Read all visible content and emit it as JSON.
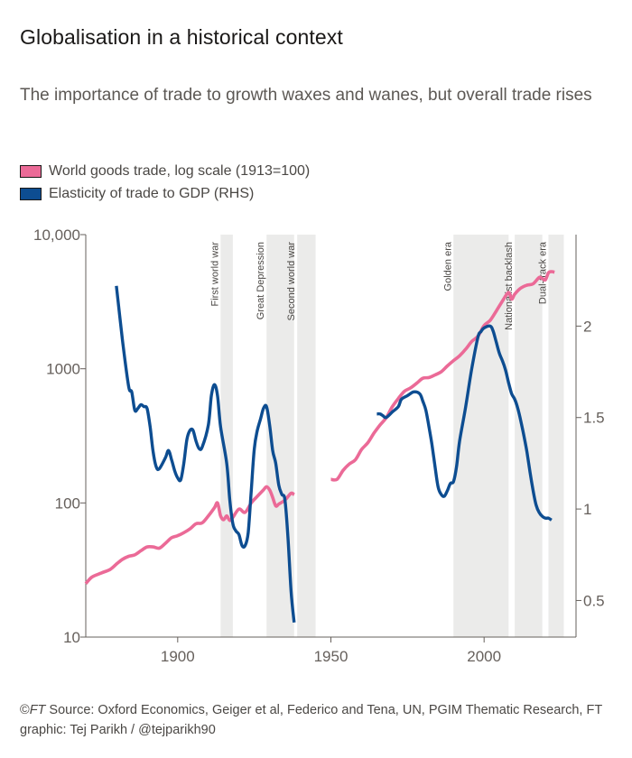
{
  "title": "Globalisation in a historical context",
  "subtitle": "The importance of trade to growth waxes and wanes, but overall trade rises",
  "footer": {
    "copyright": "©",
    "ft": "FT",
    "source": " Source: Oxford Economics, Geiger et al, Federico and Tena, UN, PGIM Thematic Research, FT graphic: Tej Parikh / @tejparikh90"
  },
  "colors": {
    "trade": "#eb6a97",
    "elasticity": "#0d4d91",
    "shade": "#ebebea",
    "axis": "#66605c"
  },
  "chart_data": {
    "type": "line",
    "xlim": [
      1870,
      2030
    ],
    "x_ticks": [
      "1900",
      "1950",
      "2000"
    ],
    "x_tick_values": [
      1900,
      1950,
      2000
    ],
    "y_left": {
      "scale": "log",
      "lim": [
        10,
        10000
      ],
      "ticks": [
        "10",
        "100",
        "1000",
        "10,000"
      ],
      "tick_values": [
        10,
        100,
        1000,
        10000
      ]
    },
    "y_right": {
      "scale": "linear",
      "lim": [
        0.3,
        2.5
      ],
      "ticks": [
        "0.5",
        "1",
        "1.5",
        "2"
      ],
      "tick_values": [
        0.5,
        1,
        1.5,
        2
      ]
    },
    "periods": [
      {
        "label": "First world war",
        "start": 1914,
        "end": 1918
      },
      {
        "label": "Great Depression",
        "start": 1929,
        "end": 1938
      },
      {
        "label": "Second world war",
        "start": 1939,
        "end": 1945
      },
      {
        "label": "Golden era",
        "start": 1990,
        "end": 2008
      },
      {
        "label": "Nationalist backlash",
        "start": 2010,
        "end": 2019
      },
      {
        "label": "Dual-track era",
        "start": 2021,
        "end": 2026
      }
    ],
    "series": [
      {
        "name": "World goods trade, log scale (1913=100)",
        "axis": "left",
        "segments": [
          [
            [
              1870,
              25
            ],
            [
              1872,
              28
            ],
            [
              1875,
              30
            ],
            [
              1878,
              32
            ],
            [
              1880,
              35
            ],
            [
              1882,
              38
            ],
            [
              1884,
              40
            ],
            [
              1886,
              41
            ],
            [
              1888,
              44
            ],
            [
              1890,
              47
            ],
            [
              1892,
              47
            ],
            [
              1894,
              46
            ],
            [
              1896,
              50
            ],
            [
              1898,
              55
            ],
            [
              1900,
              57
            ],
            [
              1902,
              60
            ],
            [
              1904,
              64
            ],
            [
              1906,
              70
            ],
            [
              1908,
              71
            ],
            [
              1910,
              80
            ],
            [
              1912,
              92
            ],
            [
              1913,
              100
            ],
            [
              1914,
              80
            ],
            [
              1915,
              75
            ],
            [
              1916,
              80
            ],
            [
              1917,
              74
            ],
            [
              1918,
              78
            ],
            [
              1920,
              90
            ],
            [
              1922,
              85
            ],
            [
              1924,
              100
            ],
            [
              1926,
              112
            ],
            [
              1928,
              125
            ],
            [
              1929,
              132
            ],
            [
              1930,
              125
            ],
            [
              1931,
              110
            ],
            [
              1932,
              95
            ],
            [
              1933,
              98
            ],
            [
              1935,
              105
            ],
            [
              1937,
              118
            ],
            [
              1938,
              115
            ]
          ],
          [
            [
              1950,
              150
            ],
            [
              1952,
              150
            ],
            [
              1954,
              175
            ],
            [
              1956,
              195
            ],
            [
              1958,
              210
            ],
            [
              1960,
              250
            ],
            [
              1962,
              280
            ],
            [
              1964,
              330
            ],
            [
              1966,
              380
            ],
            [
              1968,
              430
            ],
            [
              1970,
              520
            ],
            [
              1972,
              600
            ],
            [
              1974,
              680
            ],
            [
              1976,
              720
            ],
            [
              1978,
              780
            ],
            [
              1980,
              850
            ],
            [
              1982,
              860
            ],
            [
              1984,
              900
            ],
            [
              1986,
              950
            ],
            [
              1988,
              1050
            ],
            [
              1990,
              1150
            ],
            [
              1992,
              1250
            ],
            [
              1994,
              1400
            ],
            [
              1996,
              1600
            ],
            [
              1998,
              1750
            ],
            [
              2000,
              2100
            ],
            [
              2002,
              2300
            ],
            [
              2004,
              2700
            ],
            [
              2006,
              3200
            ],
            [
              2008,
              3700
            ],
            [
              2009,
              3300
            ],
            [
              2010,
              3600
            ],
            [
              2012,
              4000
            ],
            [
              2014,
              4200
            ],
            [
              2016,
              4300
            ],
            [
              2018,
              4800
            ],
            [
              2019,
              4700
            ],
            [
              2020,
              4600
            ],
            [
              2021,
              5200
            ],
            [
              2022,
              5300
            ],
            [
              2023,
              5250
            ]
          ]
        ]
      },
      {
        "name": "Elasticity of trade to GDP (RHS)",
        "axis": "right",
        "segments": [
          [
            [
              1880,
              2.22
            ],
            [
              1882,
              1.92
            ],
            [
              1884,
              1.67
            ],
            [
              1885,
              1.64
            ],
            [
              1886,
              1.54
            ],
            [
              1887,
              1.55
            ],
            [
              1888,
              1.57
            ],
            [
              1889,
              1.56
            ],
            [
              1890,
              1.55
            ],
            [
              1891,
              1.45
            ],
            [
              1892,
              1.31
            ],
            [
              1893,
              1.23
            ],
            [
              1894,
              1.22
            ],
            [
              1896,
              1.28
            ],
            [
              1897,
              1.32
            ],
            [
              1898,
              1.27
            ],
            [
              1899,
              1.21
            ],
            [
              1900,
              1.17
            ],
            [
              1901,
              1.16
            ],
            [
              1902,
              1.25
            ],
            [
              1903,
              1.38
            ],
            [
              1904,
              1.43
            ],
            [
              1905,
              1.43
            ],
            [
              1906,
              1.37
            ],
            [
              1907,
              1.33
            ],
            [
              1908,
              1.34
            ],
            [
              1910,
              1.46
            ],
            [
              1911,
              1.62
            ],
            [
              1912,
              1.68
            ],
            [
              1913,
              1.62
            ],
            [
              1914,
              1.45
            ],
            [
              1916,
              1.25
            ],
            [
              1917,
              1.05
            ],
            [
              1918,
              0.92
            ],
            [
              1919,
              0.88
            ],
            [
              1920,
              0.86
            ],
            [
              1921,
              0.8
            ],
            [
              1922,
              0.8
            ],
            [
              1923,
              0.87
            ],
            [
              1924,
              1.1
            ],
            [
              1925,
              1.33
            ],
            [
              1926,
              1.43
            ],
            [
              1927,
              1.49
            ],
            [
              1928,
              1.55
            ],
            [
              1929,
              1.56
            ],
            [
              1930,
              1.46
            ],
            [
              1931,
              1.32
            ],
            [
              1932,
              1.25
            ],
            [
              1933,
              1.13
            ],
            [
              1934,
              1.08
            ],
            [
              1935,
              1.05
            ],
            [
              1936,
              0.84
            ],
            [
              1937,
              0.55
            ],
            [
              1938,
              0.38
            ]
          ],
          [
            [
              1965,
              1.52
            ],
            [
              1966,
              1.52
            ],
            [
              1967,
              1.51
            ],
            [
              1968,
              1.5
            ],
            [
              1970,
              1.53
            ],
            [
              1972,
              1.56
            ],
            [
              1973,
              1.6
            ],
            [
              1975,
              1.62
            ],
            [
              1977,
              1.64
            ],
            [
              1979,
              1.63
            ],
            [
              1980,
              1.59
            ],
            [
              1981,
              1.54
            ],
            [
              1982,
              1.45
            ],
            [
              1983,
              1.35
            ],
            [
              1984,
              1.23
            ],
            [
              1985,
              1.12
            ],
            [
              1986,
              1.08
            ],
            [
              1987,
              1.07
            ],
            [
              1988,
              1.1
            ],
            [
              1989,
              1.14
            ],
            [
              1990,
              1.15
            ],
            [
              1991,
              1.23
            ],
            [
              1992,
              1.37
            ],
            [
              1994,
              1.56
            ],
            [
              1996,
              1.77
            ],
            [
              1998,
              1.94
            ],
            [
              1999,
              1.97
            ],
            [
              2000,
              1.99
            ],
            [
              2002,
              2
            ],
            [
              2003,
              1.97
            ],
            [
              2004,
              1.91
            ],
            [
              2005,
              1.85
            ],
            [
              2006,
              1.81
            ],
            [
              2007,
              1.76
            ],
            [
              2008,
              1.69
            ],
            [
              2009,
              1.63
            ],
            [
              2010,
              1.6
            ],
            [
              2011,
              1.55
            ],
            [
              2012,
              1.48
            ],
            [
              2013,
              1.4
            ],
            [
              2014,
              1.31
            ],
            [
              2015,
              1.2
            ],
            [
              2016,
              1.1
            ],
            [
              2017,
              1.02
            ],
            [
              2018,
              0.98
            ],
            [
              2019,
              0.96
            ],
            [
              2020,
              0.95
            ],
            [
              2021,
              0.95
            ],
            [
              2022,
              0.94
            ]
          ]
        ]
      }
    ]
  }
}
